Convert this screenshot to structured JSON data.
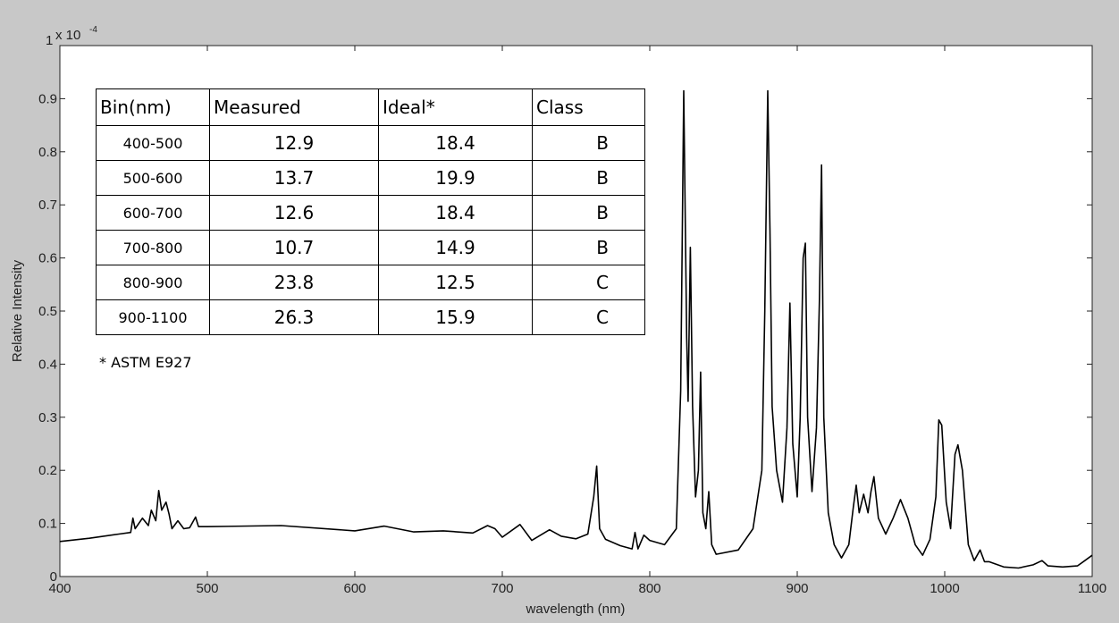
{
  "chart_data": {
    "type": "line",
    "xlabel": "wavelength (nm)",
    "ylabel": "Relative Intensity",
    "scale_label": "x 10",
    "scale_exponent": "-4",
    "xlim": [
      400,
      1100
    ],
    "ylim": [
      0,
      1
    ],
    "xticks": [
      "400",
      "500",
      "600",
      "700",
      "800",
      "900",
      "1000",
      "1100"
    ],
    "yticks": [
      "0",
      "0.1",
      "0.2",
      "0.3",
      "0.4",
      "0.5",
      "0.6",
      "0.7",
      "0.8",
      "0.9",
      "1"
    ],
    "grid": false,
    "line_color": "#000000",
    "series": [
      {
        "x": [
          400,
          420,
          440,
          448,
          449.5,
          451,
          456,
          460,
          462,
          465,
          467,
          469,
          472,
          474,
          476,
          480,
          484,
          488,
          492,
          494,
          500,
          550,
          600,
          620,
          640,
          660,
          680,
          690,
          695,
          700,
          712,
          720,
          732,
          740,
          750,
          758,
          762,
          764,
          766,
          770,
          780,
          788,
          790,
          792,
          796,
          800,
          810,
          818,
          821,
          823,
          825,
          826,
          827.5,
          829,
          831,
          833,
          834.5,
          836,
          838,
          840,
          842,
          845,
          860,
          870,
          876,
          878,
          880,
          881.5,
          883,
          886,
          890,
          893,
          895,
          897,
          900,
          902,
          904,
          905.5,
          907,
          910,
          913,
          915,
          916.5,
          918,
          921,
          925,
          930,
          935,
          938,
          940,
          942,
          945,
          948,
          950,
          952,
          955,
          960,
          965,
          970,
          975,
          980,
          985,
          990,
          994,
          996,
          998,
          1001,
          1004,
          1007,
          1009,
          1012,
          1016,
          1020,
          1024,
          1027,
          1030,
          1040,
          1050,
          1060,
          1066,
          1070,
          1080,
          1090,
          1095,
          1100
        ],
        "values": [
          0.066,
          0.072,
          0.08,
          0.083,
          0.11,
          0.09,
          0.11,
          0.096,
          0.125,
          0.105,
          0.162,
          0.125,
          0.14,
          0.118,
          0.09,
          0.105,
          0.09,
          0.092,
          0.112,
          0.094,
          0.094,
          0.096,
          0.086,
          0.095,
          0.084,
          0.086,
          0.082,
          0.096,
          0.09,
          0.074,
          0.098,
          0.068,
          0.088,
          0.076,
          0.071,
          0.08,
          0.15,
          0.208,
          0.09,
          0.07,
          0.058,
          0.052,
          0.083,
          0.052,
          0.078,
          0.068,
          0.06,
          0.09,
          0.35,
          0.915,
          0.45,
          0.33,
          0.62,
          0.32,
          0.15,
          0.2,
          0.385,
          0.12,
          0.09,
          0.16,
          0.06,
          0.042,
          0.05,
          0.09,
          0.2,
          0.5,
          0.915,
          0.65,
          0.32,
          0.2,
          0.14,
          0.28,
          0.515,
          0.25,
          0.15,
          0.3,
          0.6,
          0.628,
          0.3,
          0.16,
          0.28,
          0.52,
          0.775,
          0.3,
          0.12,
          0.06,
          0.035,
          0.06,
          0.13,
          0.172,
          0.12,
          0.155,
          0.12,
          0.16,
          0.188,
          0.11,
          0.08,
          0.11,
          0.145,
          0.11,
          0.06,
          0.04,
          0.07,
          0.15,
          0.295,
          0.285,
          0.14,
          0.09,
          0.23,
          0.248,
          0.2,
          0.06,
          0.03,
          0.05,
          0.028,
          0.028,
          0.018,
          0.016,
          0.022,
          0.03,
          0.02,
          0.018,
          0.02,
          0.03,
          0.04
        ]
      }
    ]
  },
  "table": {
    "headers": [
      "Bin(nm)",
      "Measured",
      "Ideal*",
      "Class"
    ],
    "rows": [
      [
        "400-500",
        "12.9",
        "18.4",
        "B"
      ],
      [
        "500-600",
        "13.7",
        "19.9",
        "B"
      ],
      [
        "600-700",
        "12.6",
        "18.4",
        "B"
      ],
      [
        "700-800",
        "10.7",
        "14.9",
        "B"
      ],
      [
        "800-900",
        "23.8",
        "12.5",
        "C"
      ],
      [
        "900-1100",
        "26.3",
        "15.9",
        "C"
      ]
    ],
    "note": "* ASTM E927"
  }
}
